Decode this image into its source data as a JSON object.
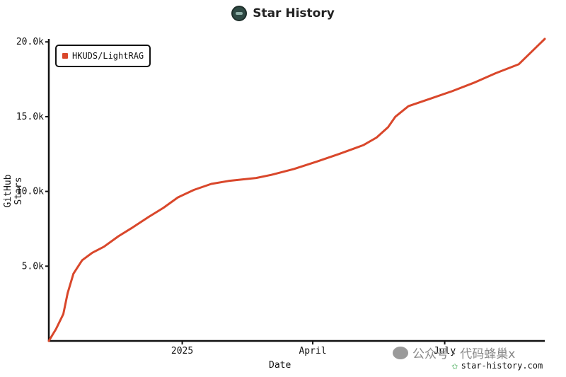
{
  "title": "Star History",
  "watermark": "公众号 · 代码蜂巢x",
  "site": "star-history.com",
  "colors": {
    "series": "#d9472b",
    "axis": "#111111"
  },
  "chart_data": {
    "type": "line",
    "xlabel": "Date",
    "ylabel": "GitHub Stars",
    "x_ticks": [
      "2025",
      "April",
      "July"
    ],
    "y_ticks": [
      "5.0k",
      "10.0k",
      "15.0k",
      "20.0k"
    ],
    "ylim": [
      0,
      20200
    ],
    "xlim": [
      "2024-10-01",
      "2025-09-08"
    ],
    "legend_position": "top-left",
    "grid": false,
    "series": [
      {
        "name": "HKUDS/LightRAG",
        "color": "#d9472b",
        "points": [
          [
            "2024-10-01",
            0
          ],
          [
            "2024-10-06",
            800
          ],
          [
            "2024-10-11",
            1800
          ],
          [
            "2024-10-14",
            3200
          ],
          [
            "2024-10-18",
            4500
          ],
          [
            "2024-10-24",
            5400
          ],
          [
            "2024-10-31",
            5900
          ],
          [
            "2024-11-08",
            6300
          ],
          [
            "2024-11-18",
            7000
          ],
          [
            "2024-11-28",
            7600
          ],
          [
            "2024-12-09",
            8300
          ],
          [
            "2024-12-19",
            8900
          ],
          [
            "2024-12-29",
            9600
          ],
          [
            "2025-01-09",
            10100
          ],
          [
            "2025-01-21",
            10500
          ],
          [
            "2025-02-02",
            10700
          ],
          [
            "2025-02-21",
            10900
          ],
          [
            "2025-03-03",
            11100
          ],
          [
            "2025-03-19",
            11500
          ],
          [
            "2025-04-04",
            12000
          ],
          [
            "2025-04-19",
            12500
          ],
          [
            "2025-05-06",
            13100
          ],
          [
            "2025-05-15",
            13600
          ],
          [
            "2025-05-23",
            14300
          ],
          [
            "2025-05-28",
            15000
          ],
          [
            "2025-06-06",
            15700
          ],
          [
            "2025-06-21",
            16200
          ],
          [
            "2025-07-06",
            16700
          ],
          [
            "2025-07-22",
            17300
          ],
          [
            "2025-08-05",
            17900
          ],
          [
            "2025-08-21",
            18500
          ],
          [
            "2025-09-08",
            20200
          ]
        ]
      }
    ]
  }
}
